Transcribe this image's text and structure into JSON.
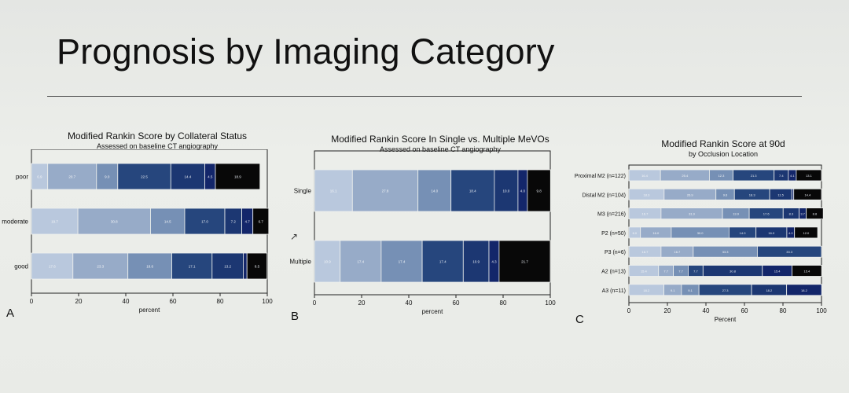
{
  "slide": {
    "title": "Prognosis by Imaging Category"
  },
  "panels": [
    {
      "letter": "A",
      "title": "Modified Rankin Score by Collateral Status",
      "subtitle": "Assessed on baseline CT angiography"
    },
    {
      "letter": "B",
      "title": "Modified Rankin Score In Single vs. Multiple MeVOs",
      "subtitle": "Assessed on baseline CT angiography"
    },
    {
      "letter": "C",
      "title": "Modified Rankin Score at 90d",
      "subtitle": "by Occlusion Location"
    }
  ],
  "colors": [
    "#b9c8dd",
    "#97abc8",
    "#7690b5",
    "#26467d",
    "#1c3772",
    "#13266a",
    "#080808"
  ],
  "chart_data": [
    {
      "type": "bar",
      "orientation": "horizontal",
      "stacked": true,
      "categories": [
        "poor",
        "moderate",
        "good"
      ],
      "series": [
        {
          "values": [
            6.9,
            19.7,
            17.6
          ]
        },
        {
          "values": [
            20.7,
            30.8,
            23.3
          ]
        },
        {
          "values": [
            9.0,
            0,
            18.6
          ]
        },
        {
          "values": [
            22.5,
            14.5,
            17.1
          ]
        },
        {
          "values": [
            14.4,
            17.0,
            13.2
          ]
        },
        {
          "values": [
            4.5,
            7.2,
            1.6
          ]
        },
        {
          "values": [
            18.9,
            4.7,
            8.5
          ]
        }
      ],
      "extra": {
        "moderate_segment_7": 6.7
      },
      "xlabel": "percent",
      "xlim": [
        0,
        100
      ],
      "xticks": [
        0,
        20,
        40,
        60,
        80,
        100
      ],
      "grid": false
    },
    {
      "type": "bar",
      "orientation": "horizontal",
      "stacked": true,
      "categories": [
        "Single",
        "Multiple"
      ],
      "series": [
        {
          "values": [
            16.1,
            10.9
          ]
        },
        {
          "values": [
            27.8,
            17.4
          ]
        },
        {
          "values": [
            14.0,
            17.4
          ]
        },
        {
          "values": [
            18.4,
            17.4
          ]
        },
        {
          "values": [
            10.0,
            10.9
          ]
        },
        {
          "values": [
            4.0,
            4.3
          ]
        },
        {
          "values": [
            9.8,
            21.7
          ]
        }
      ],
      "xlabel": "percent",
      "xlim": [
        0,
        100
      ],
      "xticks": [
        0,
        20,
        40,
        60,
        80,
        100
      ],
      "grid": false
    },
    {
      "type": "bar",
      "orientation": "horizontal",
      "stacked": true,
      "categories": [
        "Proximal M2 (n=122)",
        "Distal M2 (n=104)",
        "M3 (n=216)",
        "P2 (n=50)",
        "P3 (n=6)",
        "A2 (n=13)",
        "A3 (n=11)"
      ],
      "segments": [
        [
          16.4,
          25.4,
          12.3,
          21.3,
          7.4,
          4.1,
          13.1
        ],
        [
          18.3,
          26.9,
          9.6,
          18.3,
          11.5,
          1.0,
          14.4
        ],
        [
          16.7,
          31.9,
          13.9,
          17.6,
          8.3,
          3.7,
          8.8
        ],
        [
          6.0,
          16.0,
          30.0,
          14.0,
          16.0,
          4.0,
          12.0
        ],
        [
          16.7,
          16.7,
          33.3,
          33.3
        ],
        [
          15.4,
          7.7,
          7.7,
          7.7,
          30.8,
          15.4,
          15.4
        ],
        [
          18.2,
          9.1,
          9.1,
          27.3,
          18.2,
          18.2
        ]
      ],
      "segment_color_index": [
        [
          0,
          1,
          2,
          3,
          4,
          5,
          6
        ],
        [
          0,
          1,
          2,
          3,
          4,
          5,
          6
        ],
        [
          0,
          1,
          2,
          3,
          4,
          5,
          6
        ],
        [
          0,
          1,
          2,
          3,
          4,
          5,
          6
        ],
        [
          0,
          1,
          2,
          3
        ],
        [
          0,
          1,
          2,
          3,
          4,
          5,
          6
        ],
        [
          0,
          1,
          2,
          3,
          4,
          5
        ]
      ],
      "xlabel": "Percent",
      "xlim": [
        0,
        100
      ],
      "xticks": [
        0,
        20,
        40,
        60,
        80,
        100
      ],
      "grid": false
    }
  ]
}
